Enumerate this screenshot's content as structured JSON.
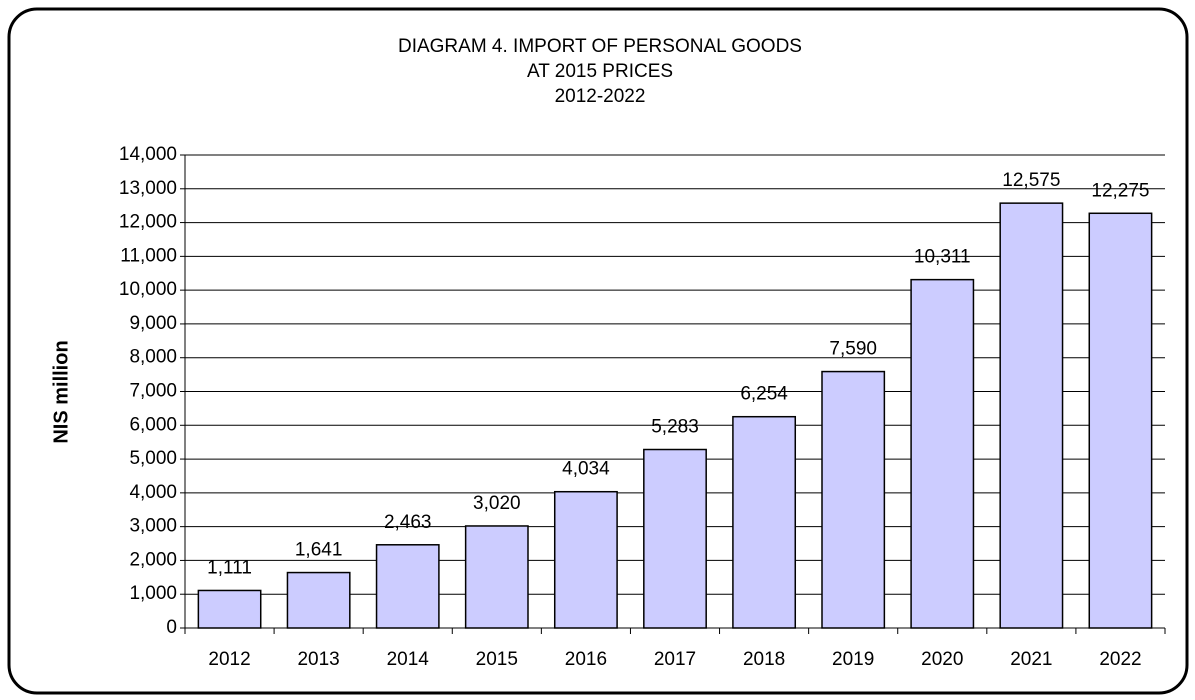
{
  "chart_data": {
    "type": "bar",
    "title": [
      "DIAGRAM 4. IMPORT OF PERSONAL GOODS",
      "AT 2015 PRICES",
      "2012-2022"
    ],
    "y_label": "NIS million",
    "categories": [
      "2012",
      "2013",
      "2014",
      "2015",
      "2016",
      "2017",
      "2018",
      "2019",
      "2020",
      "2021",
      "2022"
    ],
    "values": [
      1111,
      1641,
      2463,
      3020,
      4034,
      5283,
      6254,
      7590,
      10311,
      12575,
      12275
    ],
    "value_labels": [
      "1,111",
      "1,641",
      "2,463",
      "3,020",
      "4,034",
      "5,283",
      "6,254",
      "7,590",
      "10,311",
      "12,575",
      "12,275"
    ],
    "color": "#ccccff",
    "ylim": [
      0,
      14000
    ],
    "yticks": [
      0,
      {
        "value": 1000,
        "label": "1,000"
      },
      {
        "value": 2000,
        "label": "2,000"
      },
      {
        "value": 3000,
        "label": "3,000"
      },
      {
        "value": 4000,
        "label": "4,000"
      },
      {
        "value": 5000,
        "label": "5,000"
      },
      {
        "value": 6000,
        "label": "6,000"
      },
      {
        "value": 7000,
        "label": "7,000"
      },
      {
        "value": 8000,
        "label": "8,000"
      },
      {
        "value": 9000,
        "label": "9,000"
      },
      {
        "value": 10000,
        "label": "10,000"
      },
      {
        "value": 11000,
        "label": "11,000"
      },
      {
        "value": 12000,
        "label": "12,000"
      },
      {
        "value": 13000,
        "label": "13,000"
      },
      {
        "value": 14000,
        "label": "14,000"
      }
    ],
    "grid": true
  }
}
